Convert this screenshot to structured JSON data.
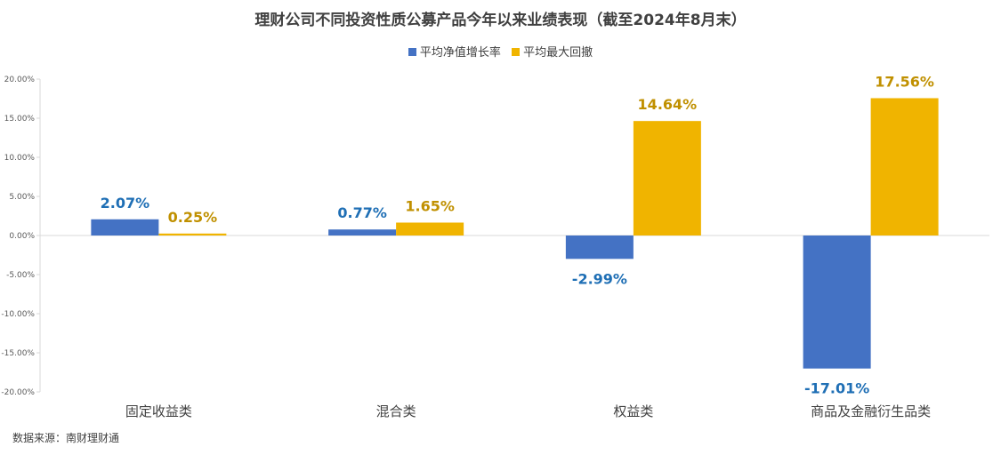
{
  "title": "理财公司不同投资性质公募产品今年以来业绩表现（截至2024年8月末）",
  "source": "数据来源：南财理财通",
  "colors": {
    "series1": "#4472C4",
    "series2": "#F0B400",
    "label1": "#1F6FB5",
    "label2": "#C09000",
    "axis": "#d9d9d9"
  },
  "chart_data": {
    "type": "bar",
    "title": "理财公司不同投资性质公募产品今年以来业绩表现（截至2024年8月末）",
    "categories": [
      "固定收益类",
      "混合类",
      "权益类",
      "商品及金融衍生品类"
    ],
    "series": [
      {
        "name": "平均净值增长率",
        "values": [
          2.07,
          0.77,
          -2.99,
          -17.01
        ],
        "labels": [
          "2.07%",
          "0.77%",
          "-2.99%",
          "-17.01%"
        ]
      },
      {
        "name": "平均最大回撤",
        "values": [
          0.25,
          1.65,
          14.64,
          17.56
        ],
        "labels": [
          "0.25%",
          "1.65%",
          "14.64%",
          "17.56%"
        ]
      }
    ],
    "ylim": [
      -20,
      20
    ],
    "yticks": [
      20,
      15,
      10,
      5,
      0,
      -5,
      -10,
      -15,
      -20
    ],
    "ytick_labels": [
      "20.00%",
      "15.00%",
      "10.00%",
      "5.00%",
      "0.00%",
      "-5.00%",
      "-10.00%",
      "-15.00%",
      "-20.00%"
    ],
    "legend": "top",
    "grid": false
  }
}
